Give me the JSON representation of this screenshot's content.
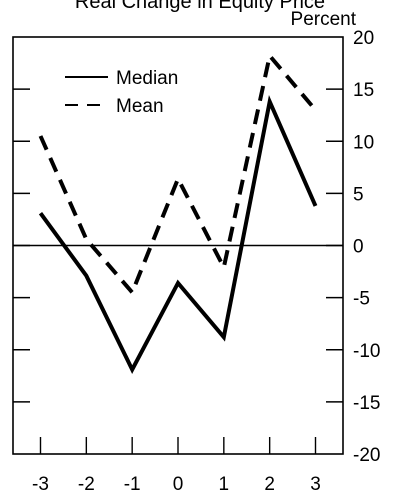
{
  "chart_data": {
    "type": "line",
    "title": "Real Change in Equity Price",
    "unit_label": "Percent",
    "x": [
      -3,
      -2,
      -1,
      0,
      1,
      2,
      3
    ],
    "xlim": [
      -3.6,
      3.6
    ],
    "ylim": [
      -20,
      20
    ],
    "x_ticks": [
      -3,
      -2,
      -1,
      0,
      1,
      2,
      3
    ],
    "y_ticks": [
      20,
      15,
      10,
      5,
      0,
      -5,
      -10,
      -15,
      -20
    ],
    "grid": false,
    "legend_position": "top-left",
    "series": [
      {
        "name": "Median",
        "style": "solid",
        "values": [
          3.1,
          -2.9,
          -11.9,
          -3.6,
          -8.8,
          13.8,
          3.8
        ]
      },
      {
        "name": "Mean",
        "style": "dashed",
        "values": [
          10.5,
          0.6,
          -4.5,
          6.4,
          -2.1,
          18.2,
          13.0
        ]
      }
    ],
    "reference_line_y": 0
  }
}
